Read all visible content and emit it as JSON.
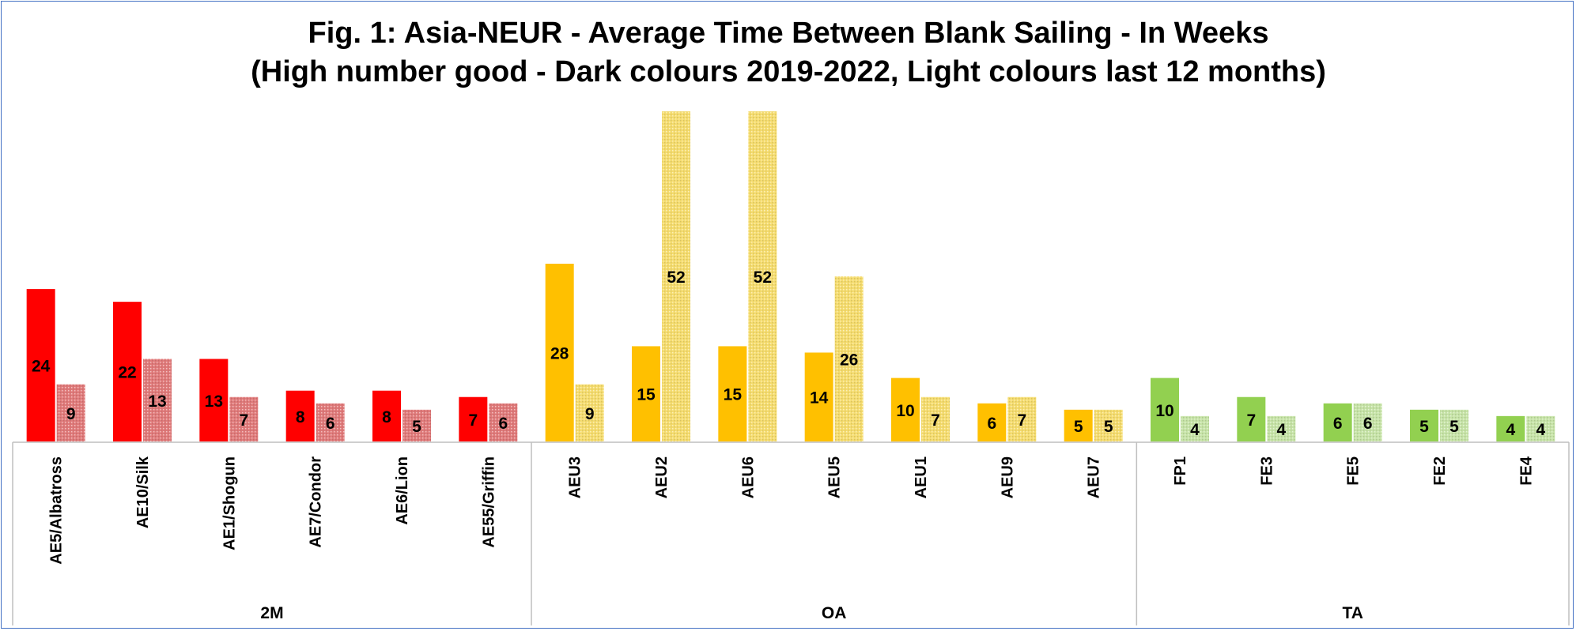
{
  "chart_data": {
    "type": "bar",
    "title_lines": [
      "Fig. 1:  Asia-NEUR - Average Time Between Blank Sailing - In Weeks",
      "(High number good - Dark colours 2019-2022, Light colours last 12 months)"
    ],
    "xlabel": "",
    "ylabel": "",
    "ylim": [
      0,
      52
    ],
    "grid": false,
    "legend": "none",
    "groups": [
      {
        "name": "2M",
        "color_dark": "#ff0000",
        "color_light": "#e07a7a"
      },
      {
        "name": "OA",
        "color_dark": "#ffc000",
        "color_light": "#f5dc6e"
      },
      {
        "name": "TA",
        "color_dark": "#92d050",
        "color_light": "#c6e3a6"
      }
    ],
    "categories": [
      {
        "label": "AE5/Albatross",
        "group": "2M"
      },
      {
        "label": "AE10/Silk",
        "group": "2M"
      },
      {
        "label": "AE1/Shogun",
        "group": "2M"
      },
      {
        "label": "AE7/Condor",
        "group": "2M"
      },
      {
        "label": "AE6/Lion",
        "group": "2M"
      },
      {
        "label": "AE55/Griffin",
        "group": "2M"
      },
      {
        "label": "AEU3",
        "group": "OA"
      },
      {
        "label": "AEU2",
        "group": "OA"
      },
      {
        "label": "AEU6",
        "group": "OA"
      },
      {
        "label": "AEU5",
        "group": "OA"
      },
      {
        "label": "AEU1",
        "group": "OA"
      },
      {
        "label": "AEU9",
        "group": "OA"
      },
      {
        "label": "AEU7",
        "group": "OA"
      },
      {
        "label": "FP1",
        "group": "TA"
      },
      {
        "label": "FE3",
        "group": "TA"
      },
      {
        "label": "FE5",
        "group": "TA"
      },
      {
        "label": "FE2",
        "group": "TA"
      },
      {
        "label": "FE4",
        "group": "TA"
      }
    ],
    "series": [
      {
        "period": "2019-2022",
        "shade": "dark",
        "values": [
          24,
          22,
          13,
          8,
          8,
          7,
          28,
          15,
          15,
          14,
          10,
          6,
          5,
          10,
          7,
          6,
          5,
          4
        ]
      },
      {
        "period": "last 12 months",
        "shade": "light",
        "values": [
          9,
          13,
          7,
          6,
          5,
          6,
          9,
          52,
          52,
          26,
          7,
          7,
          5,
          4,
          4,
          6,
          5,
          4
        ]
      }
    ]
  }
}
